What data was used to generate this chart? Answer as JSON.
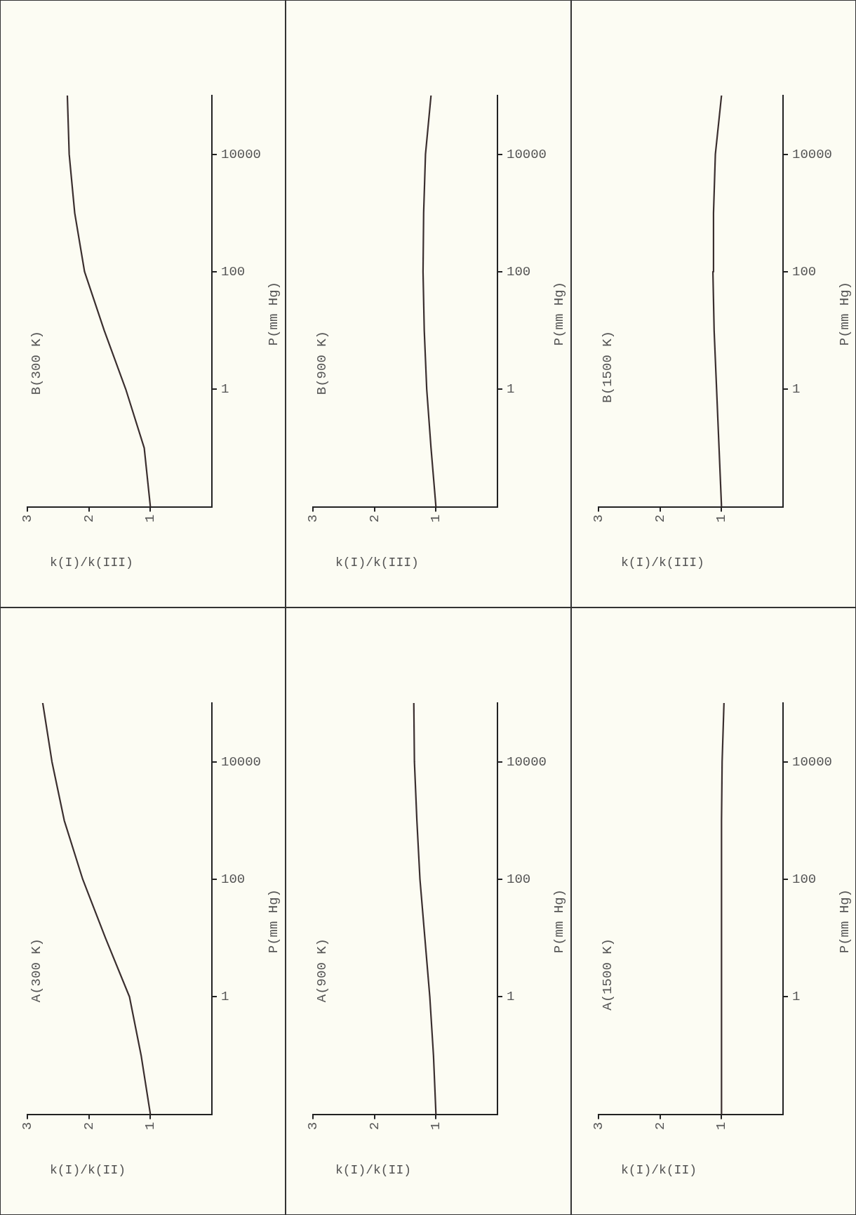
{
  "chart_data": [
    {
      "type": "line",
      "title": "A(300 K)",
      "xlabel": "k(I)/k(II)",
      "ylabel": "P(mm Hg)",
      "series": [
        {
          "color": "#3b2f2f",
          "x": [
            1.0,
            1.15,
            1.34,
            1.73,
            2.1,
            2.4,
            2.6,
            2.75
          ],
          "values": [
            0.01,
            0.1,
            1,
            10,
            100,
            1000,
            10000,
            100000
          ]
        }
      ],
      "xlim": [
        3,
        0
      ],
      "ylim": [
        0.01,
        100000
      ],
      "xticks": [
        1,
        2,
        3
      ],
      "yticks": [
        1,
        100,
        10000
      ],
      "log": "y",
      "grid": false,
      "legend": false,
      "marker": "none",
      "line_style": "solid"
    },
    {
      "type": "line",
      "title": "B(300 K)",
      "xlabel": "k(I)/k(III)",
      "ylabel": "P(mm Hg)",
      "series": [
        {
          "color": "#3b2f2f",
          "x": [
            1.0,
            1.1,
            1.4,
            1.75,
            2.07,
            2.23,
            2.32,
            2.35
          ],
          "values": [
            0.01,
            0.1,
            1,
            10,
            100,
            1000,
            10000,
            100000
          ]
        }
      ],
      "xlim": [
        3,
        0
      ],
      "ylim": [
        0.01,
        100000
      ],
      "xticks": [
        1,
        2,
        3
      ],
      "yticks": [
        1,
        100,
        10000
      ],
      "log": "y",
      "grid": false,
      "legend": false,
      "marker": "none",
      "line_style": "solid"
    },
    {
      "type": "line",
      "title": "A(900 K)",
      "xlabel": "k(I)/k(II)",
      "ylabel": "P(mm Hg)",
      "series": [
        {
          "color": "#3b2f2f",
          "x": [
            1.0,
            1.04,
            1.1,
            1.18,
            1.26,
            1.31,
            1.35,
            1.36
          ],
          "values": [
            0.01,
            0.1,
            1,
            10,
            100,
            1000,
            10000,
            100000
          ]
        }
      ],
      "xlim": [
        3,
        0
      ],
      "ylim": [
        0.01,
        100000
      ],
      "xticks": [
        1,
        2,
        3
      ],
      "yticks": [
        1,
        100,
        10000
      ],
      "log": "y",
      "grid": false,
      "legend": false,
      "marker": "none",
      "line_style": "solid"
    },
    {
      "type": "line",
      "title": "B(900 K)",
      "xlabel": "k(I)/k(III)",
      "ylabel": "P(mm Hg)",
      "series": [
        {
          "color": "#3b2f2f",
          "x": [
            1.0,
            1.08,
            1.15,
            1.19,
            1.21,
            1.2,
            1.17,
            1.08
          ],
          "values": [
            0.01,
            0.1,
            1,
            10,
            100,
            1000,
            10000,
            100000
          ]
        }
      ],
      "xlim": [
        3,
        0
      ],
      "ylim": [
        0.01,
        100000
      ],
      "xticks": [
        1,
        2,
        3
      ],
      "yticks": [
        1,
        100,
        10000
      ],
      "log": "y",
      "grid": false,
      "legend": false,
      "marker": "none",
      "line_style": "solid"
    },
    {
      "type": "line",
      "title": "A(1500 K)",
      "xlabel": "k(I)/k(II)",
      "ylabel": "P(mm Hg)",
      "series": [
        {
          "color": "#3b2f2f",
          "x": [
            1.0,
            1.0,
            1.0,
            1.0,
            0.99,
            0.96
          ],
          "values": [
            0.01,
            1,
            100,
            1000,
            10000,
            100000
          ]
        }
      ],
      "xlim": [
        3,
        0
      ],
      "ylim": [
        0.01,
        100000
      ],
      "xticks": [
        1,
        2,
        3
      ],
      "yticks": [
        1,
        100,
        10000
      ],
      "log": "y",
      "grid": false,
      "legend": false,
      "marker": "none",
      "line_style": "solid"
    },
    {
      "type": "line",
      "title": "B(1500 K)",
      "xlabel": "k(I)/k(III)",
      "ylabel": "P(mm Hg)",
      "series": [
        {
          "color": "#3b2f2f",
          "x": [
            1.0,
            1.04,
            1.08,
            1.12,
            1.14,
            1.13,
            1.1,
            1.0
          ],
          "values": [
            0.01,
            0.1,
            1,
            10,
            100,
            1000,
            10000,
            100000
          ]
        }
      ],
      "xlim": [
        3,
        0
      ],
      "ylim": [
        0.01,
        100000
      ],
      "xticks": [
        1,
        2,
        3
      ],
      "yticks": [
        1,
        100,
        10000
      ],
      "log": "y",
      "grid": false,
      "legend": false,
      "marker": "none",
      "line_style": "solid"
    }
  ]
}
